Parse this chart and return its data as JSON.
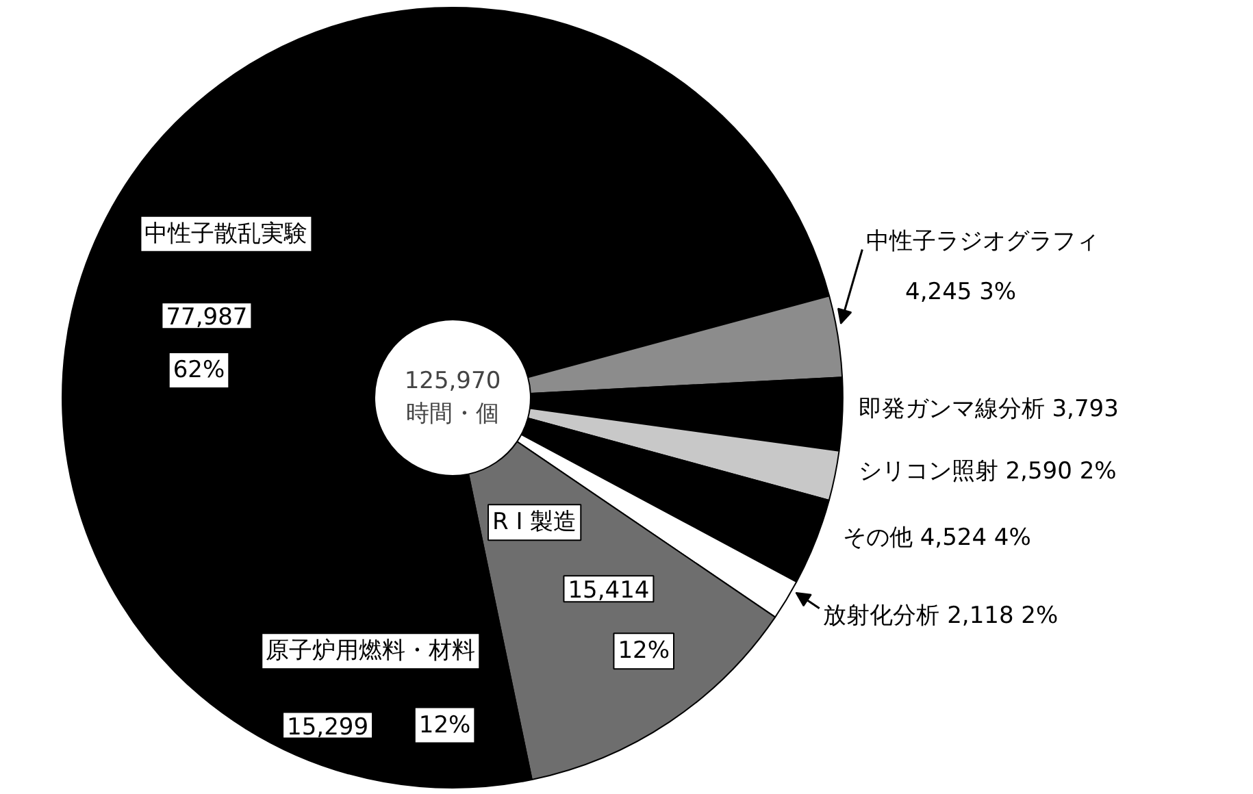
{
  "chart_data": {
    "type": "donut",
    "categories": [
      "中性子散乱実験",
      "中性子ラジオグラフィ",
      "即発ガンマ線分析",
      "シリコン照射",
      "その他",
      "放射化分析",
      "R I 製造",
      "原子炉用燃料・材料"
    ],
    "values": [
      77987,
      4245,
      3793,
      2590,
      4524,
      2118,
      15414,
      15299
    ],
    "value_labels": [
      "77,987 62%",
      "4,245 3%",
      "3,793",
      "2,590 2%",
      "4,524 4%",
      "2,118 2%",
      "15,414 12%",
      "15,299 12%"
    ],
    "colors": [
      "#000000",
      "#8c8c8c",
      "#000000",
      "#c8c8c8",
      "#000000",
      "#ffffff",
      "#6e6e6e",
      "#000000"
    ],
    "annotations": [
      "125,970\n時間・個"
    ]
  }
}
